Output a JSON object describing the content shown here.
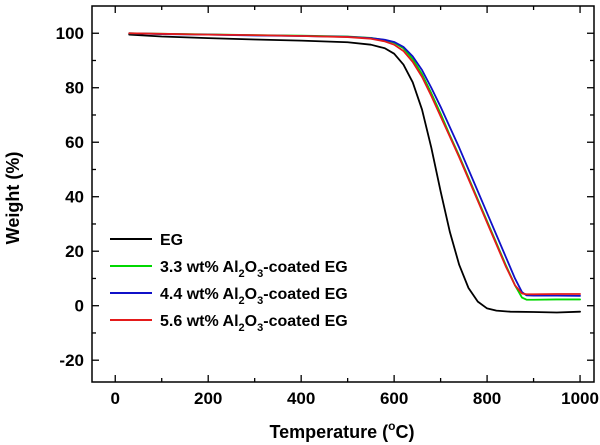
{
  "chart_data": {
    "type": "line",
    "title": "",
    "xlabel": {
      "prefix": "Temperature (",
      "sup": "o",
      "suffix": "C)"
    },
    "ylabel": "Weight (%)",
    "xlim": [
      -50,
      1030
    ],
    "ylim": [
      -28,
      110
    ],
    "xticks": [
      0,
      200,
      400,
      600,
      800,
      1000
    ],
    "yticks": [
      -20,
      0,
      20,
      40,
      60,
      80,
      100
    ],
    "xtick_labels": [
      "0",
      "200",
      "400",
      "600",
      "800",
      "1000"
    ],
    "ytick_labels": [
      "-20",
      "0",
      "20",
      "40",
      "60",
      "80",
      "100"
    ],
    "grid": false,
    "legend_position": "bottom-left",
    "series": [
      {
        "name": "EG",
        "color": "#000000",
        "legend": {
          "pre": "EG",
          "sub": "",
          "mid": "",
          "sub2": "",
          "post": ""
        },
        "x": [
          30,
          100,
          200,
          300,
          400,
          500,
          550,
          580,
          600,
          620,
          640,
          660,
          680,
          700,
          720,
          740,
          760,
          780,
          800,
          820,
          850,
          900,
          950,
          1000
        ],
        "y": [
          99.5,
          98.8,
          98.2,
          97.7,
          97.3,
          96.7,
          95.8,
          94.5,
          92.5,
          88.5,
          82,
          72,
          58,
          42,
          27,
          15,
          6.5,
          1.5,
          -1.0,
          -1.8,
          -2.2,
          -2.3,
          -2.5,
          -2.2
        ]
      },
      {
        "name": "3.3 wt% Al2O3-coated EG",
        "color": "#00d800",
        "legend": {
          "pre": "3.3 wt% Al",
          "sub": "2",
          "mid": "O",
          "sub2": "3",
          "post": "-coated EG"
        },
        "x": [
          30,
          100,
          200,
          300,
          400,
          500,
          550,
          580,
          600,
          620,
          640,
          660,
          680,
          700,
          720,
          740,
          760,
          780,
          800,
          820,
          840,
          860,
          875,
          885,
          900,
          950,
          1000
        ],
        "y": [
          100,
          99.8,
          99.6,
          99.3,
          99.1,
          98.8,
          98.3,
          97.5,
          96.5,
          94.5,
          90.5,
          85,
          78,
          70.5,
          62.5,
          55,
          47,
          39,
          31,
          23,
          15,
          7.5,
          3.0,
          2.2,
          2.2,
          2.3,
          2.3
        ]
      },
      {
        "name": "4.4 wt% Al2O3-coated EG",
        "color": "#1010c8",
        "legend": {
          "pre": "4.4 wt% Al",
          "sub": "2",
          "mid": "O",
          "sub2": "3",
          "post": "-coated EG"
        },
        "x": [
          30,
          100,
          200,
          300,
          400,
          500,
          550,
          580,
          600,
          620,
          640,
          660,
          680,
          700,
          720,
          740,
          760,
          780,
          800,
          820,
          840,
          860,
          875,
          885,
          900,
          950,
          1000
        ],
        "y": [
          100,
          99.7,
          99.5,
          99.2,
          99.0,
          98.7,
          98.2,
          97.6,
          96.8,
          95.0,
          91.5,
          86.5,
          80,
          73,
          65.5,
          58,
          50,
          42,
          34,
          26,
          18,
          10,
          5.0,
          3.8,
          3.7,
          3.7,
          3.6
        ]
      },
      {
        "name": "5.6 wt% Al2O3-coated EG",
        "color": "#e41a1a",
        "legend": {
          "pre": "5.6 wt% Al",
          "sub": "2",
          "mid": "O",
          "sub2": "3",
          "post": "-coated EG"
        },
        "x": [
          30,
          100,
          200,
          300,
          400,
          500,
          550,
          580,
          600,
          620,
          640,
          660,
          680,
          700,
          720,
          740,
          760,
          780,
          800,
          820,
          840,
          860,
          875,
          885,
          900,
          950,
          1000
        ],
        "y": [
          100,
          99.8,
          99.5,
          99.3,
          99.0,
          98.6,
          98.0,
          97.0,
          95.8,
          93.5,
          89.5,
          84,
          77,
          69.5,
          62,
          54.5,
          46.5,
          38.5,
          30.5,
          22.5,
          14.5,
          7.5,
          4.5,
          4.2,
          4.2,
          4.3,
          4.3
        ]
      }
    ]
  }
}
